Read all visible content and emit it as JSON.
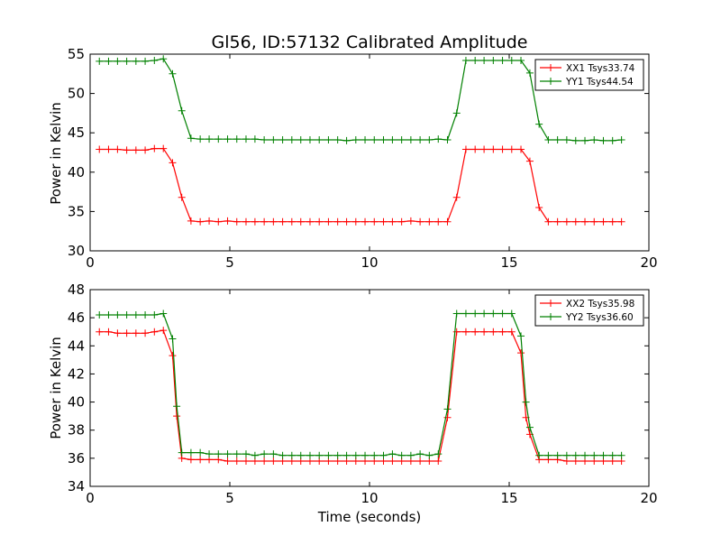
{
  "chart_data": [
    {
      "type": "line",
      "title": "Gl56, ID:57132 Calibrated Amplitude",
      "xlabel": "",
      "ylabel": "Power in Kelvin",
      "xlim": [
        0,
        20
      ],
      "ylim": [
        30,
        55
      ],
      "xticks": [
        "0",
        "5",
        "10",
        "15",
        "20"
      ],
      "yticks": [
        "30",
        "35",
        "40",
        "45",
        "50",
        "55"
      ],
      "grid": false,
      "legend_position": "top-right",
      "marker": "plus",
      "x": [
        0.33,
        0.66,
        0.98,
        1.31,
        1.64,
        1.97,
        2.3,
        2.62,
        2.95,
        3.28,
        3.61,
        3.94,
        4.26,
        4.59,
        4.92,
        5.25,
        5.58,
        5.9,
        6.23,
        6.56,
        6.89,
        7.22,
        7.54,
        7.87,
        8.2,
        8.53,
        8.86,
        9.18,
        9.51,
        9.84,
        10.17,
        10.5,
        10.82,
        11.15,
        11.48,
        11.81,
        12.14,
        12.46,
        12.79,
        13.12,
        13.45,
        13.78,
        14.1,
        14.43,
        14.76,
        15.09,
        15.42,
        15.74,
        16.07,
        16.4,
        16.73,
        17.06,
        17.38,
        17.71,
        18.04,
        18.37,
        18.7,
        19.02
      ],
      "series": [
        {
          "name": "XX1 Tsys33.74",
          "color": "#ff0000",
          "values": [
            42.9,
            42.9,
            42.9,
            42.8,
            42.8,
            42.8,
            43.0,
            43.0,
            41.2,
            36.8,
            33.8,
            33.7,
            33.8,
            33.7,
            33.8,
            33.7,
            33.7,
            33.7,
            33.7,
            33.7,
            33.7,
            33.7,
            33.7,
            33.7,
            33.7,
            33.7,
            33.7,
            33.7,
            33.7,
            33.7,
            33.7,
            33.7,
            33.7,
            33.7,
            33.8,
            33.7,
            33.7,
            33.7,
            33.7,
            36.8,
            42.9,
            42.9,
            42.9,
            42.9,
            42.9,
            42.9,
            42.9,
            41.4,
            35.5,
            33.7,
            33.7,
            33.7,
            33.7,
            33.7,
            33.7,
            33.7,
            33.7,
            33.7
          ]
        },
        {
          "name": "YY1 Tsys44.54",
          "color": "#008000",
          "values": [
            54.1,
            54.1,
            54.1,
            54.1,
            54.1,
            54.1,
            54.2,
            54.4,
            52.5,
            47.8,
            44.3,
            44.2,
            44.2,
            44.2,
            44.2,
            44.2,
            44.2,
            44.2,
            44.1,
            44.1,
            44.1,
            44.1,
            44.1,
            44.1,
            44.1,
            44.1,
            44.1,
            44.0,
            44.1,
            44.1,
            44.1,
            44.1,
            44.1,
            44.1,
            44.1,
            44.1,
            44.1,
            44.2,
            44.1,
            47.5,
            54.2,
            54.2,
            54.2,
            54.2,
            54.2,
            54.2,
            54.2,
            52.6,
            46.1,
            44.1,
            44.1,
            44.1,
            44.0,
            44.0,
            44.1,
            44.0,
            44.0,
            44.1
          ]
        }
      ]
    },
    {
      "type": "line",
      "title": "",
      "xlabel": "Time (seconds)",
      "ylabel": "Power in Kelvin",
      "xlim": [
        0,
        20
      ],
      "ylim": [
        34,
        48
      ],
      "xticks": [
        "0",
        "5",
        "10",
        "15",
        "20"
      ],
      "yticks": [
        "34",
        "36",
        "38",
        "40",
        "42",
        "44",
        "46",
        "48"
      ],
      "grid": false,
      "legend_position": "top-right",
      "marker": "plus",
      "x": [
        0.33,
        0.66,
        0.98,
        1.31,
        1.64,
        1.97,
        2.3,
        2.62,
        2.95,
        3.1,
        3.28,
        3.61,
        3.94,
        4.26,
        4.59,
        4.92,
        5.25,
        5.58,
        5.9,
        6.23,
        6.56,
        6.89,
        7.22,
        7.54,
        7.87,
        8.2,
        8.53,
        8.86,
        9.18,
        9.51,
        9.84,
        10.17,
        10.5,
        10.82,
        11.15,
        11.48,
        11.81,
        12.14,
        12.46,
        12.79,
        13.12,
        13.45,
        13.78,
        14.1,
        14.43,
        14.76,
        15.09,
        15.42,
        15.6,
        15.74,
        16.07,
        16.4,
        16.73,
        17.06,
        17.38,
        17.71,
        18.04,
        18.37,
        18.7,
        19.02
      ],
      "series": [
        {
          "name": "XX2 Tsys35.98",
          "color": "#ff0000",
          "values": [
            45.0,
            45.0,
            44.9,
            44.9,
            44.9,
            44.9,
            45.0,
            45.1,
            43.3,
            39.0,
            36.0,
            35.9,
            35.9,
            35.9,
            35.9,
            35.8,
            35.8,
            35.8,
            35.8,
            35.8,
            35.8,
            35.8,
            35.8,
            35.8,
            35.8,
            35.8,
            35.8,
            35.8,
            35.8,
            35.8,
            35.8,
            35.8,
            35.8,
            35.8,
            35.8,
            35.8,
            35.8,
            35.8,
            35.8,
            38.9,
            45.0,
            45.0,
            45.0,
            45.0,
            45.0,
            45.0,
            45.0,
            43.5,
            38.9,
            37.7,
            35.9,
            35.9,
            35.9,
            35.8,
            35.8,
            35.8,
            35.8,
            35.8,
            35.8,
            35.8
          ]
        },
        {
          "name": "YY2 Tsys36.60",
          "color": "#008000",
          "values": [
            46.2,
            46.2,
            46.2,
            46.2,
            46.2,
            46.2,
            46.2,
            46.3,
            44.5,
            39.7,
            36.4,
            36.4,
            36.4,
            36.3,
            36.3,
            36.3,
            36.3,
            36.3,
            36.2,
            36.3,
            36.3,
            36.2,
            36.2,
            36.2,
            36.2,
            36.2,
            36.2,
            36.2,
            36.2,
            36.2,
            36.2,
            36.2,
            36.2,
            36.3,
            36.2,
            36.2,
            36.3,
            36.2,
            36.3,
            39.5,
            46.3,
            46.3,
            46.3,
            46.3,
            46.3,
            46.3,
            46.3,
            44.7,
            40.0,
            38.2,
            36.2,
            36.2,
            36.2,
            36.2,
            36.2,
            36.2,
            36.2,
            36.2,
            36.2,
            36.2
          ]
        }
      ]
    }
  ]
}
